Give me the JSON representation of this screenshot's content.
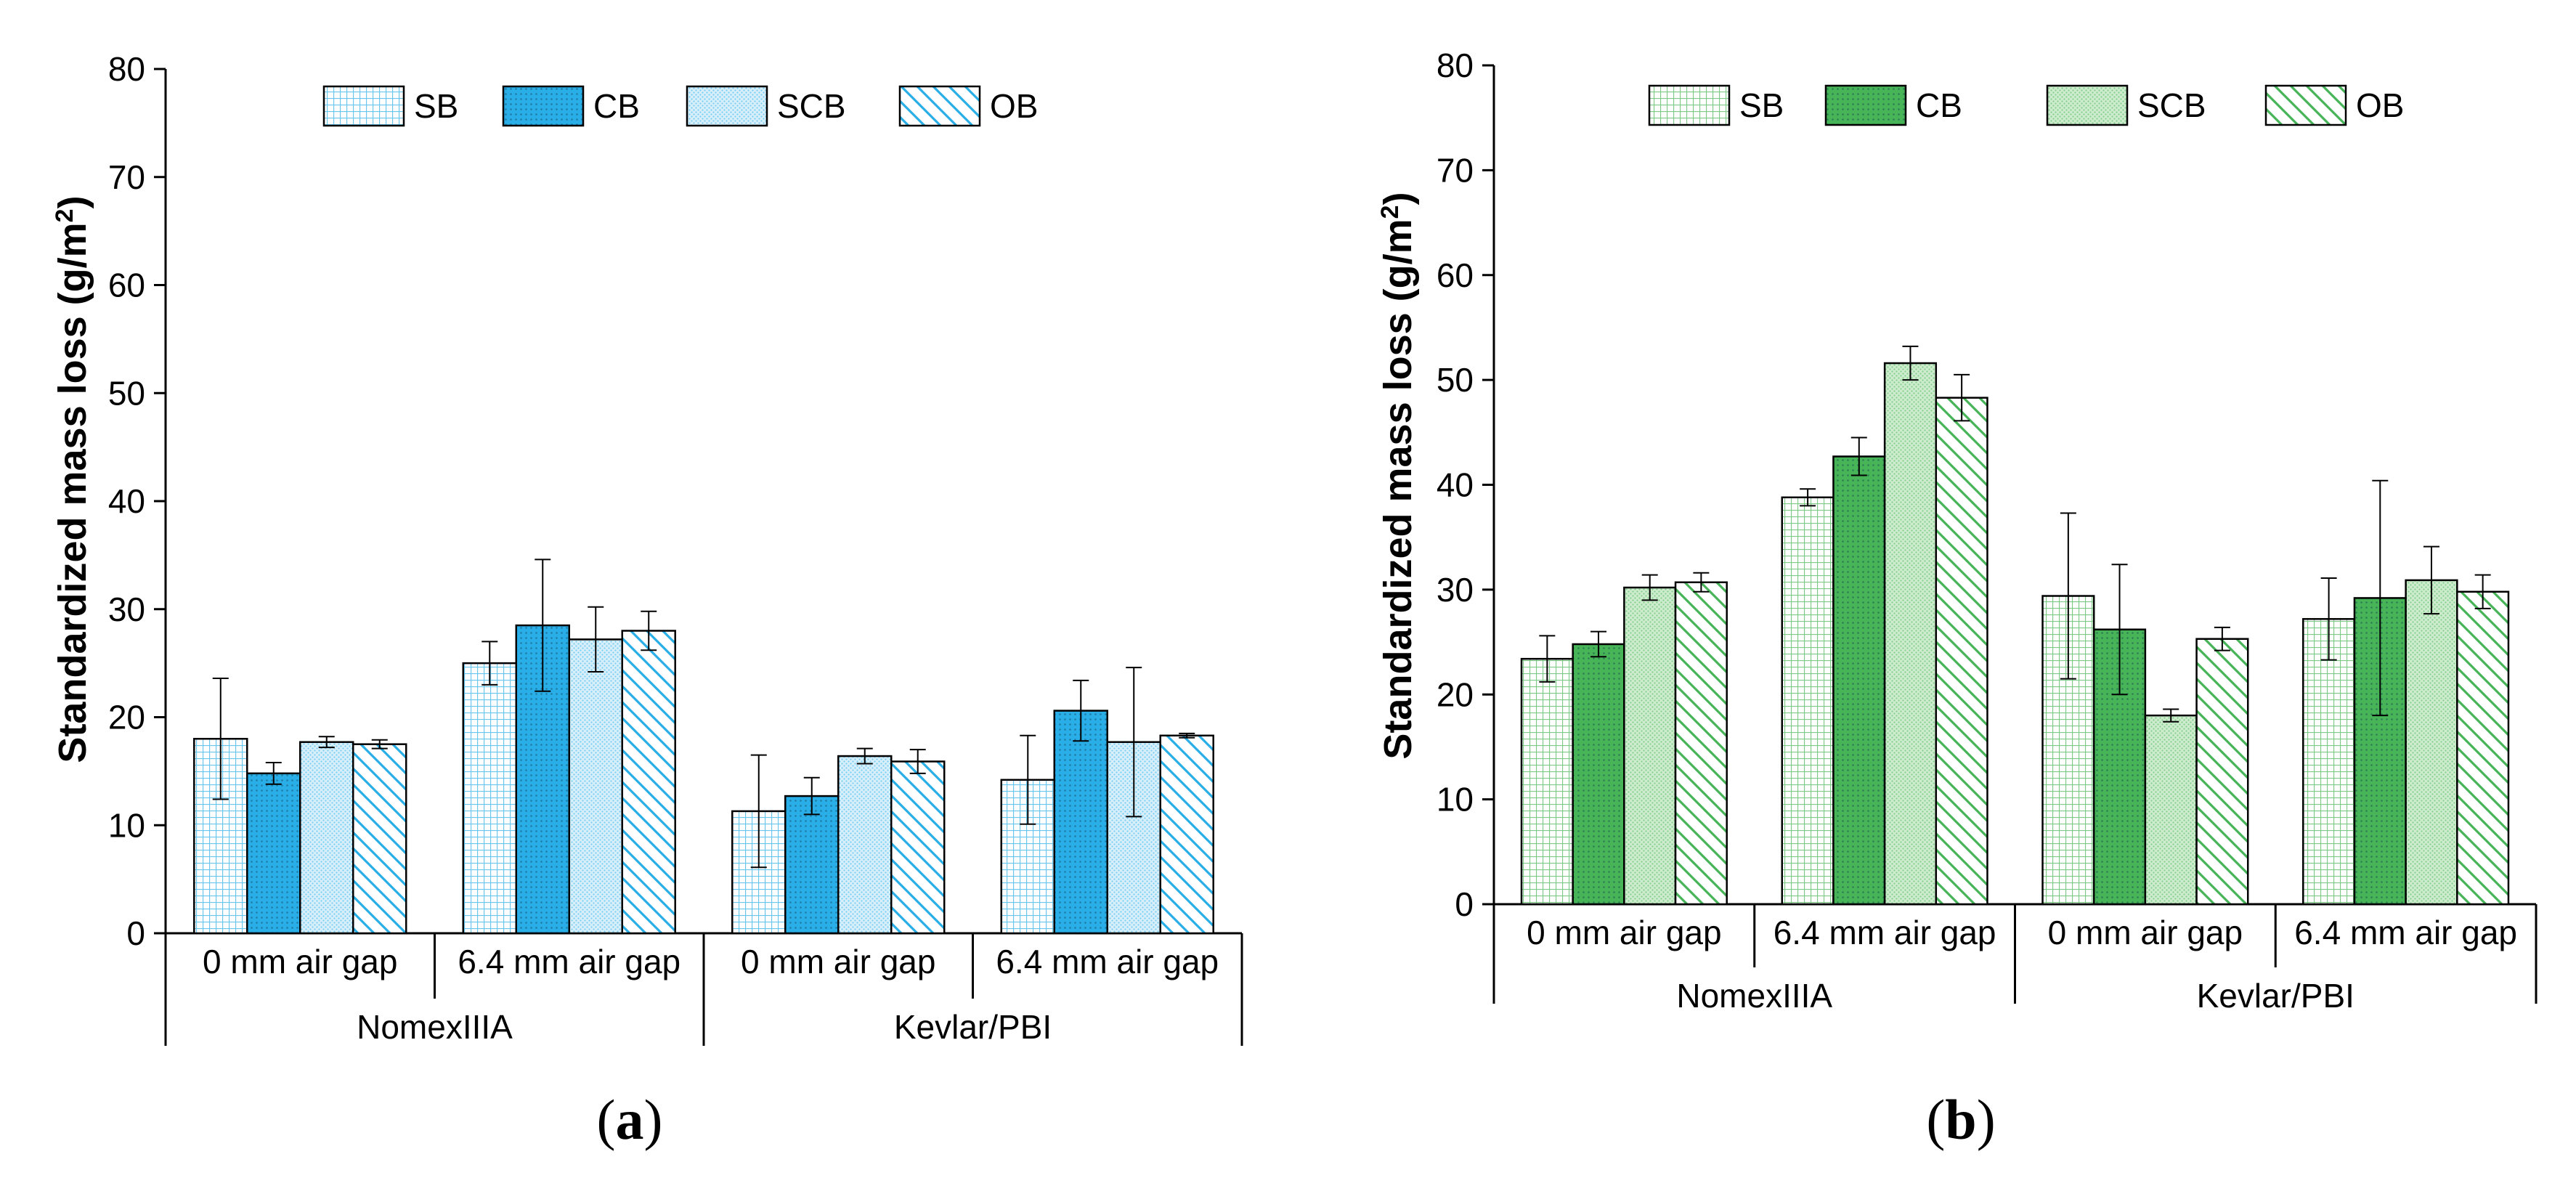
{
  "figure": {
    "panels": [
      {
        "label_open": "(",
        "label_letter": "a",
        "label_close": ")",
        "ylabel_main": "Standardized mass loss (g/m",
        "ylabel_sup": "2",
        "ylabel_end": ")",
        "colors": {
          "accent": "#29aee8",
          "light": "#d7effa",
          "line": "#000000"
        }
      },
      {
        "label_open": "(",
        "label_letter": "b",
        "label_close": ")",
        "ylabel_main": "Standardized mass loss (g/m",
        "ylabel_sup": "2",
        "ylabel_end": ")",
        "colors": {
          "accent": "#46b457",
          "light": "#cdeccd",
          "line": "#000000"
        }
      }
    ]
  },
  "chart_data": [
    {
      "type": "bar",
      "title": "",
      "xlabel": "",
      "ylabel": "Standardized mass loss (g/m2)",
      "ylim": [
        0,
        80
      ],
      "yticks": [
        0,
        10,
        20,
        30,
        40,
        50,
        60,
        70,
        80
      ],
      "categories": [
        "0 mm air gap",
        "6.4 mm air gap",
        "0 mm air gap",
        "6.4 mm air gap"
      ],
      "groups": [
        {
          "name": "NomexIIIA",
          "categories": [
            0,
            1
          ]
        },
        {
          "name": "Kevlar/PBI",
          "categories": [
            2,
            3
          ]
        }
      ],
      "legend_position": "top",
      "series": [
        {
          "name": "SB",
          "pattern": "grid",
          "values": [
            18.0,
            25.0,
            11.3,
            14.2
          ],
          "errors": [
            5.6,
            2.0,
            5.2,
            4.1
          ]
        },
        {
          "name": "CB",
          "pattern": "solid-dots",
          "values": [
            14.8,
            28.5,
            12.7,
            20.6
          ],
          "errors": [
            1.0,
            6.1,
            1.7,
            2.8
          ]
        },
        {
          "name": "SCB",
          "pattern": "dots",
          "values": [
            17.7,
            27.2,
            16.4,
            17.7
          ],
          "errors": [
            0.5,
            3.0,
            0.7,
            6.9
          ]
        },
        {
          "name": "OB",
          "pattern": "diagonal",
          "values": [
            17.5,
            28.0,
            15.9,
            18.3
          ],
          "errors": [
            0.4,
            1.8,
            1.1,
            0.2
          ]
        }
      ]
    },
    {
      "type": "bar",
      "title": "",
      "xlabel": "",
      "ylabel": "Standardized mass loss (g/m2)",
      "ylim": [
        0,
        80
      ],
      "yticks": [
        0,
        10,
        20,
        30,
        40,
        50,
        60,
        70,
        80
      ],
      "categories": [
        "0 mm air gap",
        "6.4 mm air gap",
        "0 mm air gap",
        "6.4 mm air gap"
      ],
      "groups": [
        {
          "name": "NomexIIIA",
          "categories": [
            0,
            1
          ]
        },
        {
          "name": "Kevlar/PBI",
          "categories": [
            2,
            3
          ]
        }
      ],
      "legend_position": "top",
      "series": [
        {
          "name": "SB",
          "pattern": "grid",
          "values": [
            23.4,
            38.8,
            29.4,
            27.2
          ],
          "errors": [
            2.2,
            0.8,
            7.9,
            3.9
          ]
        },
        {
          "name": "CB",
          "pattern": "solid-dots",
          "values": [
            24.8,
            42.7,
            26.2,
            29.2
          ],
          "errors": [
            1.2,
            1.8,
            6.2,
            11.2
          ]
        },
        {
          "name": "SCB",
          "pattern": "dots",
          "values": [
            30.2,
            51.6,
            18.0,
            30.9
          ],
          "errors": [
            1.2,
            1.6,
            0.6,
            3.2
          ]
        },
        {
          "name": "OB",
          "pattern": "diagonal",
          "values": [
            30.7,
            48.3,
            25.3,
            29.8
          ],
          "errors": [
            0.9,
            2.2,
            1.1,
            1.6
          ]
        }
      ]
    }
  ]
}
